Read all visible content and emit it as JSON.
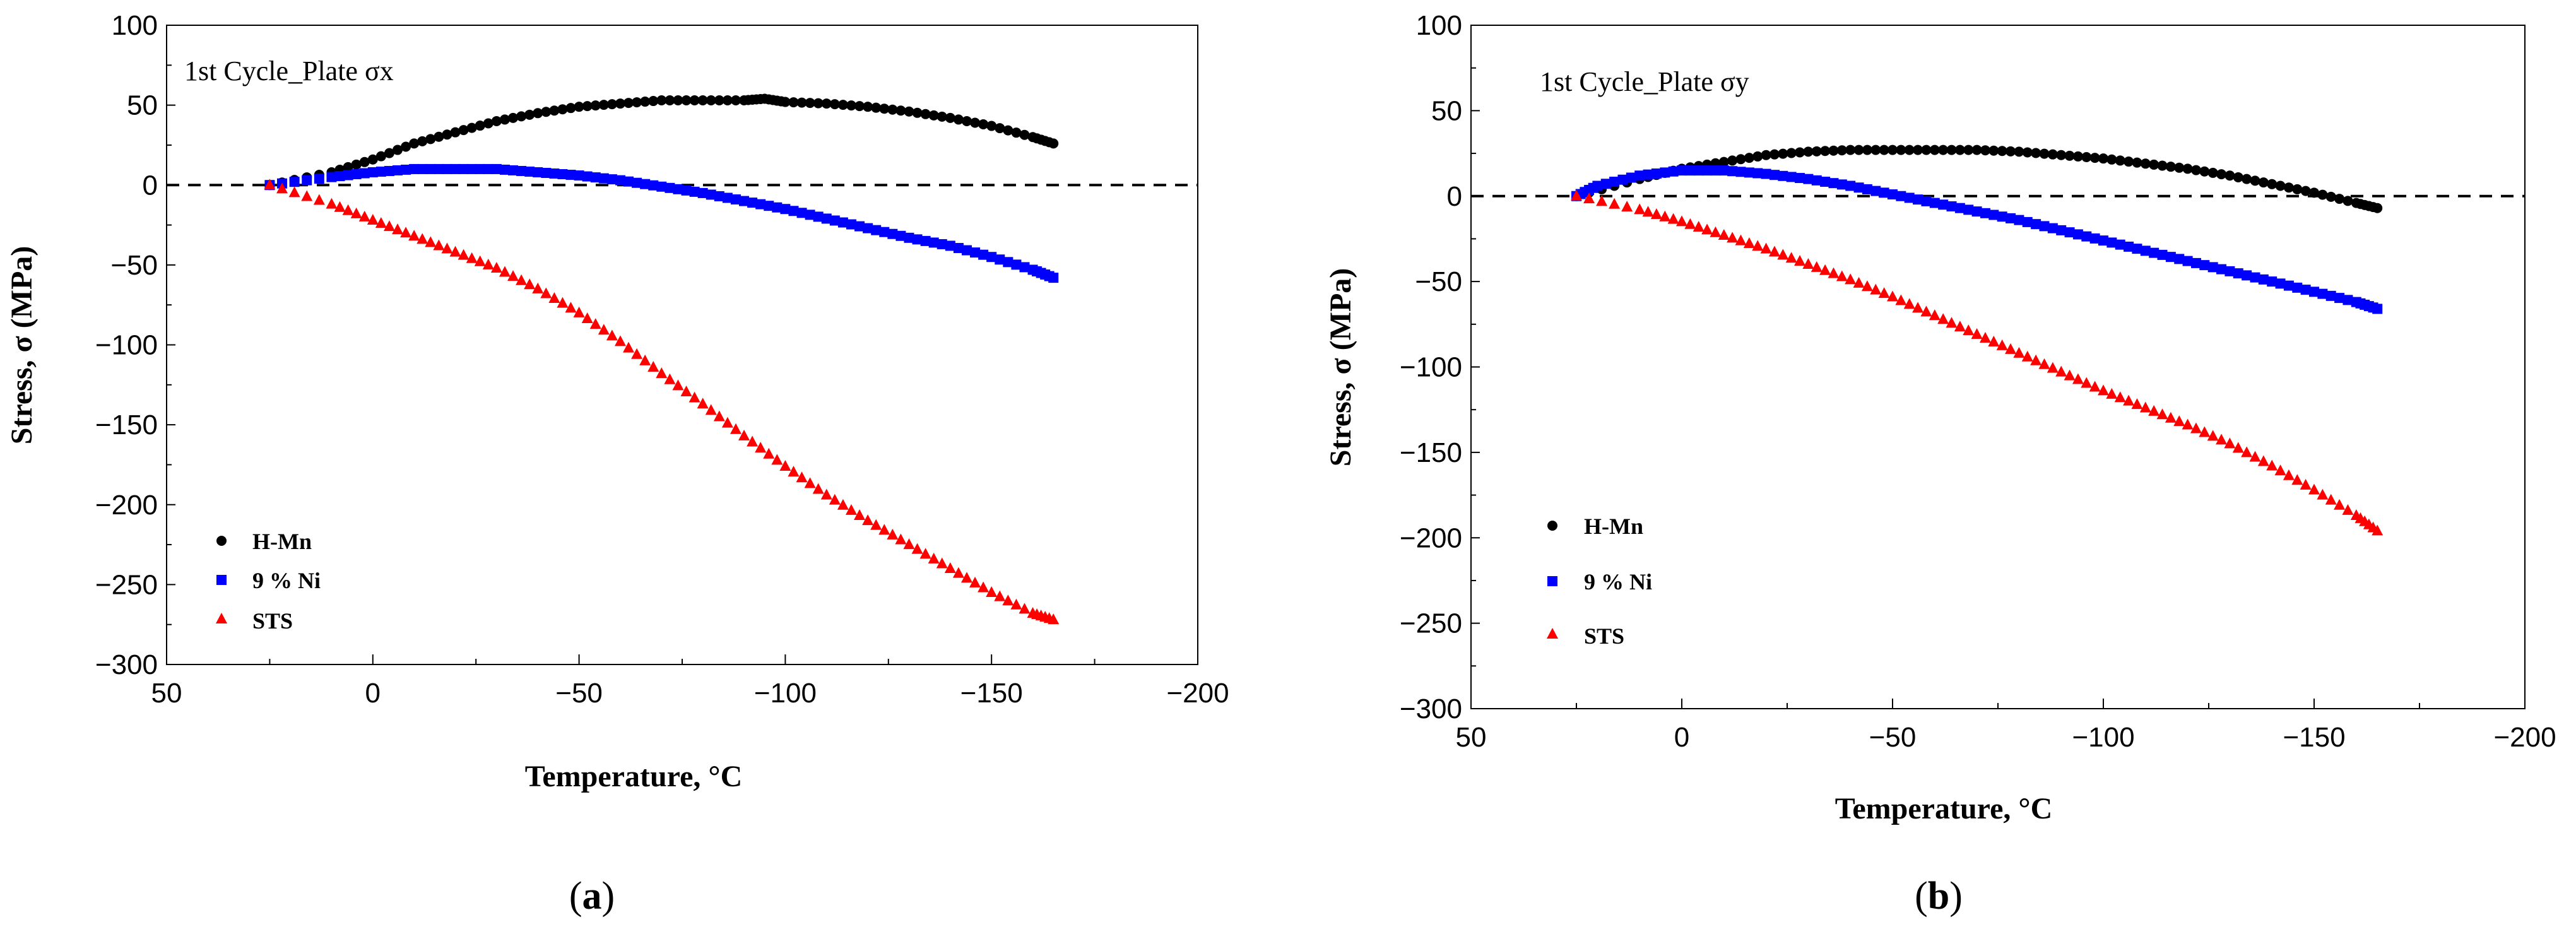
{
  "chart_data": [
    {
      "type": "scatter",
      "title": "1st Cycle_Plate σx",
      "caption_letter": "a",
      "xlabel": "Temperature, °C",
      "ylabel": "Stress, σ (MPa)",
      "xlim": [
        50,
        -200
      ],
      "ylim": [
        -300,
        100
      ],
      "xticks": [
        "50",
        "0",
        "−50",
        "−100",
        "−150",
        "−200"
      ],
      "yticks": [
        "100",
        "50",
        "0",
        "−50",
        "−100",
        "−150",
        "−200",
        "−250",
        "−300"
      ],
      "xtick_values": [
        50,
        0,
        -50,
        -100,
        -150,
        -200
      ],
      "ytick_values": [
        100,
        50,
        0,
        -50,
        -100,
        -150,
        -200,
        -250,
        -300
      ],
      "reference_line": 0,
      "legend_position": "bottom-left",
      "series": [
        {
          "name": "H-Mn",
          "color": "#000000",
          "marker": "circle",
          "x": [
            25,
            10,
            0,
            -10,
            -20,
            -30,
            -40,
            -50,
            -60,
            -70,
            -80,
            -90,
            -95,
            -100,
            -110,
            -120,
            -130,
            -140,
            -150,
            -160,
            -165
          ],
          "y": [
            0,
            8,
            16,
            26,
            33,
            40,
            45,
            49,
            51,
            53,
            53,
            53,
            54,
            52,
            51,
            49,
            46,
            42,
            37,
            30,
            26
          ]
        },
        {
          "name": "9 % Ni",
          "color": "#0000ff",
          "marker": "square",
          "x": [
            25,
            10,
            0,
            -10,
            -20,
            -30,
            -40,
            -50,
            -60,
            -70,
            -80,
            -90,
            -100,
            -110,
            -120,
            -130,
            -140,
            -150,
            -160,
            -165
          ],
          "y": [
            0,
            5,
            8,
            10,
            10,
            10,
            8,
            6,
            3,
            -1,
            -5,
            -10,
            -15,
            -21,
            -27,
            -33,
            -38,
            -45,
            -53,
            -58
          ]
        },
        {
          "name": "STS",
          "color": "#ff0000",
          "marker": "triangle",
          "x": [
            25,
            10,
            0,
            -10,
            -20,
            -30,
            -40,
            -50,
            -60,
            -70,
            -80,
            -90,
            -100,
            -110,
            -120,
            -130,
            -140,
            -150,
            -160,
            -165
          ],
          "y": [
            0,
            -12,
            -22,
            -32,
            -42,
            -52,
            -65,
            -80,
            -98,
            -118,
            -137,
            -157,
            -176,
            -194,
            -210,
            -225,
            -240,
            -255,
            -268,
            -272
          ]
        }
      ]
    },
    {
      "type": "scatter",
      "title": "1st Cycle_Plate σy",
      "caption_letter": "b",
      "xlabel": "Temperature, °C",
      "ylabel": "Stress, σ (MPa)",
      "xlim": [
        50,
        -200
      ],
      "ylim": [
        -300,
        100
      ],
      "xticks": [
        "50",
        "0",
        "−50",
        "−100",
        "−150",
        "−200"
      ],
      "yticks": [
        "100",
        "50",
        "0",
        "−50",
        "−100",
        "−150",
        "−200",
        "−250",
        "−300"
      ],
      "xtick_values": [
        50,
        0,
        -50,
        -100,
        -150,
        -200
      ],
      "ytick_values": [
        100,
        50,
        0,
        -50,
        -100,
        -150,
        -200,
        -250,
        -300
      ],
      "reference_line": 0,
      "legend_position": "bottom-left",
      "series": [
        {
          "name": "H-Mn",
          "color": "#000000",
          "marker": "circle",
          "x": [
            25,
            10,
            0,
            -10,
            -20,
            -30,
            -40,
            -50,
            -60,
            -70,
            -80,
            -90,
            -100,
            -110,
            -120,
            -130,
            -140,
            -150,
            -160,
            -165
          ],
          "y": [
            0,
            10,
            16,
            20,
            24,
            26,
            27,
            27,
            27,
            27,
            26,
            24,
            22,
            19,
            16,
            12,
            7,
            2,
            -4,
            -7
          ]
        },
        {
          "name": "9 % Ni",
          "color": "#0000ff",
          "marker": "square",
          "x": [
            25,
            20,
            10,
            0,
            -10,
            -20,
            -30,
            -40,
            -50,
            -60,
            -70,
            -80,
            -90,
            -100,
            -110,
            -120,
            -130,
            -140,
            -150,
            -160,
            -165
          ],
          "y": [
            0,
            6,
            12,
            15,
            15,
            13,
            10,
            6,
            1,
            -4,
            -9,
            -14,
            -20,
            -26,
            -32,
            -38,
            -44,
            -50,
            -56,
            -62,
            -66
          ]
        },
        {
          "name": "STS",
          "color": "#ff0000",
          "marker": "triangle",
          "x": [
            25,
            10,
            0,
            -10,
            -20,
            -30,
            -40,
            -50,
            -60,
            -70,
            -80,
            -90,
            -100,
            -110,
            -120,
            -130,
            -140,
            -150,
            -160,
            -165
          ],
          "y": [
            0,
            -8,
            -15,
            -23,
            -31,
            -40,
            -49,
            -59,
            -70,
            -81,
            -92,
            -103,
            -114,
            -124,
            -134,
            -145,
            -158,
            -172,
            -187,
            -196
          ]
        }
      ]
    }
  ]
}
